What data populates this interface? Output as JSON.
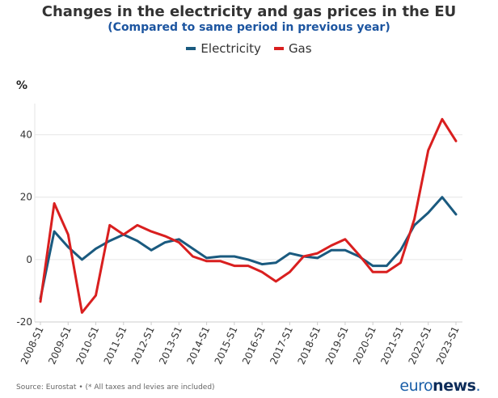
{
  "header": {
    "title": "Changes in the electricity and gas prices in the EU",
    "subtitle": "(Compared to same period in previous year)",
    "unit": "%"
  },
  "footer": {
    "source": "Source: Eurostat • (* All taxes and levies are included)",
    "brand_part1": "euro",
    "brand_part2": "news",
    "brand_dot": "."
  },
  "colors": {
    "electricity": "#1a5a7f",
    "gas": "#d91f1f",
    "subtitle": "#1c55a0",
    "grid": "#e6e6e6",
    "axis_text": "#333333"
  },
  "chart_data": {
    "type": "line",
    "title": "Changes in the electricity and gas prices in the EU",
    "subtitle": "(Compared to same period in previous year)",
    "ylabel": "%",
    "xlabel": "",
    "ylim": [
      -20,
      50
    ],
    "yticks": [
      -20,
      0,
      20,
      40
    ],
    "grid": true,
    "legend_position": "top-center",
    "x": [
      "2008-S1",
      "2008-S2",
      "2009-S1",
      "2009-S2",
      "2010-S1",
      "2010-S2",
      "2011-S1",
      "2011-S2",
      "2012-S1",
      "2012-S2",
      "2013-S1",
      "2013-S2",
      "2014-S1",
      "2014-S2",
      "2015-S1",
      "2015-S2",
      "2016-S1",
      "2016-S2",
      "2017-S1",
      "2017-S2",
      "2018-S1",
      "2018-S2",
      "2019-S1",
      "2019-S2",
      "2020-S1",
      "2020-S2",
      "2021-S1",
      "2021-S2",
      "2022-S1",
      "2022-S2",
      "2023-S1"
    ],
    "xticks": [
      "2008-S1",
      "2009-S1",
      "2010-S1",
      "2011-S1",
      "2012-S1",
      "2013-S1",
      "2014-S1",
      "2015-S1",
      "2016-S1",
      "2017-S1",
      "2018-S1",
      "2019-S1",
      "2020-S1",
      "2021-S1",
      "2022-S1",
      "2023-S1"
    ],
    "series": [
      {
        "name": "Electricity",
        "color": "#1a5a7f",
        "values": [
          -12.5,
          9,
          4,
          0,
          3.5,
          6,
          8,
          6,
          3,
          5.5,
          6.5,
          3.5,
          0.5,
          1,
          1,
          0,
          -1.5,
          -1,
          2,
          1,
          0.5,
          3,
          3,
          1,
          -2,
          -2,
          3,
          11,
          15,
          20,
          14.5
        ]
      },
      {
        "name": "Gas",
        "color": "#d91f1f",
        "values": [
          -13.5,
          18,
          8,
          -17,
          -11.5,
          11,
          8,
          11,
          9,
          7.5,
          5.5,
          1,
          -0.5,
          -0.5,
          -2,
          -2,
          -4,
          -7,
          -4,
          1,
          2,
          4.5,
          6.5,
          1.5,
          -4,
          -4,
          -1,
          13,
          35,
          45,
          38
        ]
      }
    ]
  }
}
